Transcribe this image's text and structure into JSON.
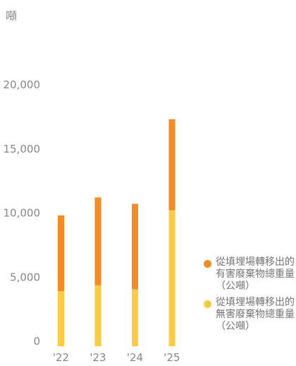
{
  "chart_data": {
    "type": "bar",
    "stacked": true,
    "unit_label": "噸",
    "categories": [
      "'22",
      "'23",
      "'24",
      "'25"
    ],
    "y_ticks": [
      "0",
      "5,000",
      "10,000",
      "15,000",
      "20,000"
    ],
    "ylim": [
      0,
      20000
    ],
    "grid": false,
    "legend_position": "right",
    "series": [
      {
        "name": "從填埋場轉移出的無害廢棄物總重量（公噸）",
        "color": "#ffcb45",
        "values": [
          4300,
          4750,
          4450,
          10600
        ]
      },
      {
        "name": "從填埋場轉移出的有害廢棄物總重量（公噸）",
        "color": "#f58b25",
        "values": [
          5900,
          6850,
          6650,
          7100
        ]
      }
    ]
  },
  "legend": [
    {
      "label": "從填埋場轉移出的有害廢棄物總重量（公噸）",
      "color": "#f58b25"
    },
    {
      "label": "從填埋場轉移出的無害廢棄物總重量（公噸）",
      "color": "#ffcb45"
    }
  ]
}
